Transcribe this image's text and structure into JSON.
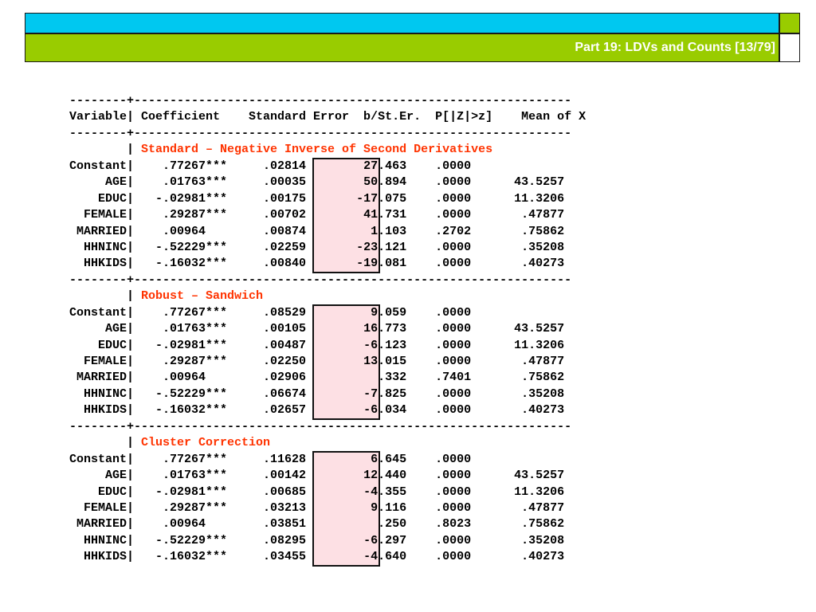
{
  "header": {
    "title": "Part 19: LDVs and Counts [13/79]"
  },
  "output": {
    "divider": "--------+-------------------------------------------------------------",
    "column_header": "Variable| Coefficient    Standard Error  b/St.Er.  P[|Z|>z]    Mean of X",
    "sections": [
      {
        "title": "Standard – Negative Inverse of Second Derivatives",
        "rows": [
          {
            "var": "Constant",
            "coef": ".77267***",
            "se": ".02814",
            "z": "27.463",
            "p": ".0000",
            "mean": ""
          },
          {
            "var": "AGE",
            "coef": ".01763***",
            "se": ".00035",
            "z": "50.894",
            "p": ".0000",
            "mean": "43.5257"
          },
          {
            "var": "EDUC",
            "coef": "-.02981***",
            "se": ".00175",
            "z": "-17.075",
            "p": ".0000",
            "mean": "11.3206"
          },
          {
            "var": "FEMALE",
            "coef": ".29287***",
            "se": ".00702",
            "z": "41.731",
            "p": ".0000",
            "mean": ".47877"
          },
          {
            "var": "MARRIED",
            "coef": ".00964",
            "se": ".00874",
            "z": "1.103",
            "p": ".2702",
            "mean": ".75862"
          },
          {
            "var": "HHNINC",
            "coef": "-.52229***",
            "se": ".02259",
            "z": "-23.121",
            "p": ".0000",
            "mean": ".35208"
          },
          {
            "var": "HHKIDS",
            "coef": "-.16032***",
            "se": ".00840",
            "z": "-19.081",
            "p": ".0000",
            "mean": ".40273"
          }
        ]
      },
      {
        "title": "Robust – Sandwich",
        "rows": [
          {
            "var": "Constant",
            "coef": ".77267***",
            "se": ".08529",
            "z": "9.059",
            "p": ".0000",
            "mean": ""
          },
          {
            "var": "AGE",
            "coef": ".01763***",
            "se": ".00105",
            "z": "16.773",
            "p": ".0000",
            "mean": "43.5257"
          },
          {
            "var": "EDUC",
            "coef": "-.02981***",
            "se": ".00487",
            "z": "-6.123",
            "p": ".0000",
            "mean": "11.3206"
          },
          {
            "var": "FEMALE",
            "coef": ".29287***",
            "se": ".02250",
            "z": "13.015",
            "p": ".0000",
            "mean": ".47877"
          },
          {
            "var": "MARRIED",
            "coef": ".00964",
            "se": ".02906",
            "z": ".332",
            "p": ".7401",
            "mean": ".75862"
          },
          {
            "var": "HHNINC",
            "coef": "-.52229***",
            "se": ".06674",
            "z": "-7.825",
            "p": ".0000",
            "mean": ".35208"
          },
          {
            "var": "HHKIDS",
            "coef": "-.16032***",
            "se": ".02657",
            "z": "-6.034",
            "p": ".0000",
            "mean": ".40273"
          }
        ]
      },
      {
        "title": "Cluster Correction",
        "rows": [
          {
            "var": "Constant",
            "coef": ".77267***",
            "se": ".11628",
            "z": "6.645",
            "p": ".0000",
            "mean": ""
          },
          {
            "var": "AGE",
            "coef": ".01763***",
            "se": ".00142",
            "z": "12.440",
            "p": ".0000",
            "mean": "43.5257"
          },
          {
            "var": "EDUC",
            "coef": "-.02981***",
            "se": ".00685",
            "z": "-4.355",
            "p": ".0000",
            "mean": "11.3206"
          },
          {
            "var": "FEMALE",
            "coef": ".29287***",
            "se": ".03213",
            "z": "9.116",
            "p": ".0000",
            "mean": ".47877"
          },
          {
            "var": "MARRIED",
            "coef": ".00964",
            "se": ".03851",
            "z": ".250",
            "p": ".8023",
            "mean": ".75862"
          },
          {
            "var": "HHNINC",
            "coef": "-.52229***",
            "se": ".08295",
            "z": "-6.297",
            "p": ".0000",
            "mean": ".35208"
          },
          {
            "var": "HHKIDS",
            "coef": "-.16032***",
            "se": ".03455",
            "z": "-4.640",
            "p": ".0000",
            "mean": ".40273"
          }
        ]
      }
    ]
  },
  "colors": {
    "header_cyan": "#00c8f0",
    "header_green": "#99cc00",
    "section_title": "#ff3300",
    "highlight_fill": "#fde0e4"
  }
}
